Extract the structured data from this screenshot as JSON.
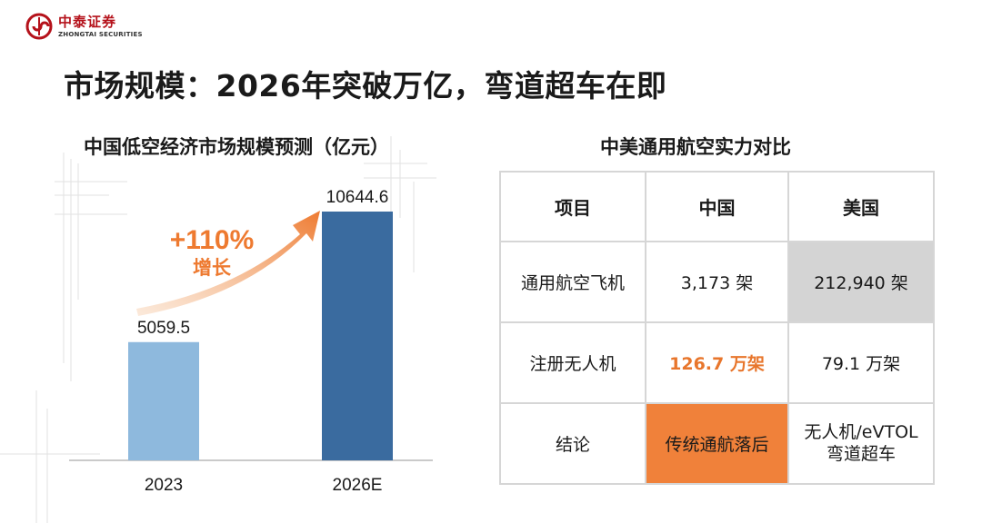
{
  "header": {
    "logo_cn": "中泰证券",
    "logo_en": "ZHONGTAI SECURITIES",
    "title": "市场规模：2026年突破万亿，弯道超车在即"
  },
  "chart": {
    "title": "中国低空经济市场规模预测（亿元）",
    "growth_label": "+110%",
    "growth_sub": "增长"
  },
  "chart_data": {
    "type": "bar",
    "title": "中国低空经济市场规模预测（亿元）",
    "categories": [
      "2023",
      "2026E"
    ],
    "values": [
      5059.5,
      10644.6
    ],
    "value_labels": [
      "5059.5",
      "10644.6"
    ],
    "colors": [
      "#8eb9dd",
      "#3a6b9f"
    ],
    "annotation": "+110% 增长",
    "xlabel": "",
    "ylabel": "",
    "grid": false
  },
  "table": {
    "title": "中美通用航空实力对比",
    "headers": [
      "项目",
      "中国",
      "美国"
    ],
    "rows": [
      [
        "通用航空飞机",
        "3,173 架",
        "212,940 架"
      ],
      [
        "注册无人机",
        "126.7 万架",
        "79.1 万架"
      ],
      [
        "结论",
        "传统通航落后",
        "无人机/eVTOL\n弯道超车"
      ]
    ],
    "conclusion_us_line1": "无人机/eVTOL",
    "conclusion_us_line2": "弯道超车",
    "highlight_colors": {
      "gray": "#d4d4d4",
      "orange": "#f0813a",
      "orange_text": "#e8762c"
    }
  }
}
